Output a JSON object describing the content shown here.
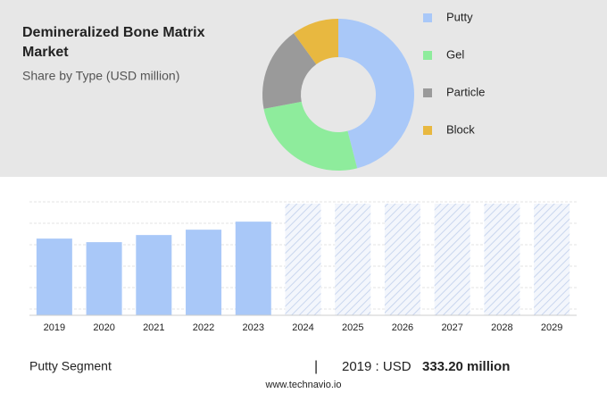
{
  "chart_data": [
    {
      "type": "pie",
      "title": "Demineralized Bone Matrix Market",
      "subtitle": "Share by Type (USD million)",
      "categories": [
        "Putty",
        "Gel",
        "Particle",
        "Block"
      ],
      "values": [
        46,
        26,
        18,
        10
      ],
      "colors": [
        "#a9c8f8",
        "#8eec9c",
        "#9a9a9a",
        "#e8b840"
      ],
      "donut": true
    },
    {
      "type": "bar",
      "categories": [
        "2019",
        "2020",
        "2021",
        "2022",
        "2023",
        "2024",
        "2025",
        "2026",
        "2027",
        "2028",
        "2029"
      ],
      "values": [
        333.2,
        317.7,
        348.7,
        371.9,
        406.8,
        null,
        null,
        null,
        null,
        null,
        null
      ],
      "color": "#a9c8f8",
      "ylim": [
        0,
        485
      ]
    }
  ],
  "footer": {
    "segment": "Putty Segment",
    "year": "2019 : USD",
    "value": "333.20 million",
    "source": "www.technavio.io"
  }
}
